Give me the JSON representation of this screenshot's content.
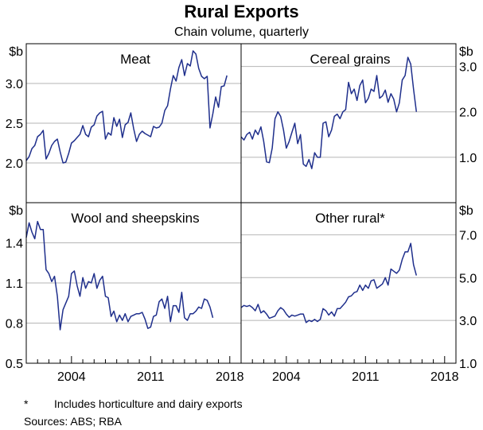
{
  "title": "Rural Exports",
  "subtitle": "Chain volume, quarterly",
  "footnote_marker": "*",
  "footnote_text": "Includes horticulture and dairy exports",
  "sources": "Sources: ABS; RBA",
  "colors": {
    "line": "#1f2f8c",
    "grid": "#b5b5b5",
    "frame": "#000000"
  },
  "chart_data": [
    {
      "type": "line",
      "panel": "top-left",
      "title": "Meat",
      "unit": "$b",
      "ylim": [
        1.5,
        3.5
      ],
      "yticks": [
        "2.0",
        "2.5",
        "3.0"
      ],
      "ytick_values": [
        2.0,
        2.5,
        3.0
      ],
      "x_start": 2000.0,
      "x_step": 0.25,
      "xlim": [
        2000,
        2019
      ],
      "values": [
        2.03,
        2.08,
        2.18,
        2.22,
        2.33,
        2.36,
        2.41,
        2.05,
        2.12,
        2.22,
        2.27,
        2.3,
        2.14,
        2.0,
        2.01,
        2.12,
        2.25,
        2.28,
        2.32,
        2.36,
        2.47,
        2.36,
        2.33,
        2.45,
        2.48,
        2.59,
        2.63,
        2.65,
        2.3,
        2.38,
        2.35,
        2.57,
        2.46,
        2.55,
        2.32,
        2.48,
        2.51,
        2.63,
        2.43,
        2.27,
        2.36,
        2.4,
        2.37,
        2.35,
        2.33,
        2.46,
        2.44,
        2.45,
        2.5,
        2.66,
        2.72,
        2.93,
        3.1,
        3.03,
        3.2,
        3.3,
        3.1,
        3.25,
        3.22,
        3.41,
        3.37,
        3.19,
        3.09,
        3.06,
        3.09,
        2.44,
        2.62,
        2.83,
        2.7,
        2.96,
        2.97,
        3.1
      ]
    },
    {
      "type": "line",
      "panel": "top-right",
      "title": "Cereal grains",
      "unit": "$b",
      "ylim": [
        0.0,
        3.5
      ],
      "yticks": [
        "1.0",
        "2.0",
        "3.0"
      ],
      "ytick_values": [
        1.0,
        2.0,
        3.0
      ],
      "x_start": 2000.0,
      "x_step": 0.25,
      "xlim": [
        2000,
        2019
      ],
      "values": [
        1.45,
        1.38,
        1.5,
        1.55,
        1.4,
        1.6,
        1.5,
        1.67,
        1.35,
        0.9,
        0.88,
        1.2,
        1.85,
        2.0,
        1.9,
        1.6,
        1.2,
        1.35,
        1.55,
        1.75,
        1.3,
        1.5,
        0.85,
        0.8,
        0.95,
        0.75,
        1.1,
        1.0,
        1.0,
        1.75,
        1.78,
        1.45,
        1.6,
        1.9,
        1.95,
        1.85,
        2.0,
        2.05,
        2.65,
        2.4,
        2.5,
        2.25,
        2.58,
        2.7,
        2.2,
        2.3,
        2.5,
        2.45,
        2.8,
        2.3,
        2.35,
        2.48,
        2.21,
        2.4,
        2.28,
        2.0,
        2.2,
        2.7,
        2.8,
        3.2,
        3.05,
        2.5,
        2.0
      ]
    },
    {
      "type": "line",
      "panel": "bottom-left",
      "title": "Wool and sheepskins",
      "unit": "$b",
      "ylim": [
        0.5,
        1.7
      ],
      "yticks": [
        "0.5",
        "0.8",
        "1.1",
        "1.4"
      ],
      "ytick_values": [
        0.5,
        0.8,
        1.1,
        1.4
      ],
      "x_start": 2000.0,
      "x_step": 0.25,
      "xlim": [
        2000,
        2019
      ],
      "values": [
        1.44,
        1.55,
        1.48,
        1.43,
        1.56,
        1.5,
        1.5,
        1.2,
        1.17,
        1.11,
        1.15,
        1.0,
        0.75,
        0.9,
        0.95,
        1.0,
        1.17,
        1.19,
        1.08,
        1.0,
        1.14,
        1.06,
        1.11,
        1.1,
        1.17,
        1.06,
        1.12,
        1.15,
        1.0,
        0.99,
        0.85,
        0.89,
        0.81,
        0.86,
        0.82,
        0.87,
        0.81,
        0.85,
        0.86,
        0.87,
        0.87,
        0.88,
        0.83,
        0.76,
        0.77,
        0.85,
        0.86,
        0.96,
        0.98,
        0.91,
        1.0,
        0.81,
        0.93,
        0.93,
        0.88,
        1.03,
        0.84,
        0.82,
        0.87,
        0.87,
        0.89,
        0.92,
        0.91,
        0.98,
        0.97,
        0.92,
        0.84
      ]
    },
    {
      "type": "line",
      "panel": "bottom-right",
      "title": "Other rural*",
      "unit": "$b",
      "ylim": [
        1.0,
        8.5
      ],
      "yticks": [
        "1.0",
        "3.0",
        "5.0",
        "7.0"
      ],
      "ytick_values": [
        1.0,
        3.0,
        5.0,
        7.0
      ],
      "x_start": 2000.0,
      "x_step": 0.25,
      "xlim": [
        2000,
        2019
      ],
      "values": [
        3.6,
        3.7,
        3.65,
        3.7,
        3.6,
        3.45,
        3.75,
        3.35,
        3.45,
        3.3,
        3.1,
        3.15,
        3.2,
        3.45,
        3.6,
        3.5,
        3.3,
        3.15,
        3.25,
        3.2,
        3.25,
        3.3,
        3.3,
        2.9,
        3.0,
        2.95,
        3.05,
        2.95,
        3.05,
        3.55,
        3.45,
        3.25,
        3.4,
        3.2,
        3.55,
        3.55,
        3.7,
        3.85,
        4.1,
        4.15,
        4.3,
        4.35,
        4.65,
        4.4,
        4.65,
        4.5,
        4.85,
        4.9,
        4.5,
        4.6,
        4.7,
        5.0,
        4.65,
        5.4,
        5.3,
        5.2,
        5.35,
        5.85,
        6.2,
        6.2,
        6.6,
        5.6,
        5.1
      ]
    }
  ],
  "x_tick_labels": [
    "2004",
    "2011",
    "2018"
  ],
  "x_tick_values": [
    2004,
    2011,
    2018
  ],
  "x_minor_ticks": [
    2001,
    2002,
    2003,
    2005,
    2006,
    2007,
    2008,
    2009,
    2010,
    2012,
    2013,
    2014,
    2015,
    2016,
    2017
  ]
}
